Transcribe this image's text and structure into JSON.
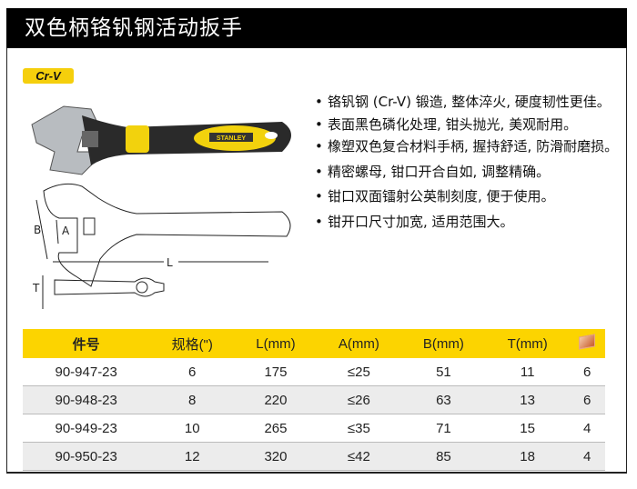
{
  "title": "双色柄铬钒钢活动扳手",
  "badge": "Cr-V",
  "brand_logo": "STANLEY",
  "diagram_labels": {
    "a": "A",
    "b": "B",
    "l": "L",
    "t": "T"
  },
  "features": [
    "铬钒钢 (Cr-V) 锻造, 整体淬火, 硬度韧性更佳。",
    "表面黑色磷化处理, 钳头抛光, 美观耐用。",
    "橡塑双色复合材料手柄, 握持舒适, 防滑耐磨损。",
    "精密螺母, 钳口开合自如, 调整精确。",
    "钳口双面镭射公英制刻度, 便于使用。",
    "钳开口尺寸加宽, 适用范围大。"
  ],
  "table": {
    "headers": [
      "件号",
      "规格(\")",
      "L(mm)",
      "A(mm)",
      "B(mm)",
      "T(mm)"
    ],
    "last_header_icon": "box-icon",
    "rows": [
      [
        "90-947-23",
        "6",
        "175",
        "≤25",
        "51",
        "11",
        "6"
      ],
      [
        "90-948-23",
        "8",
        "220",
        "≤26",
        "63",
        "13",
        "6"
      ],
      [
        "90-949-23",
        "10",
        "265",
        "≤35",
        "71",
        "15",
        "4"
      ],
      [
        "90-950-23",
        "12",
        "320",
        "≤42",
        "85",
        "18",
        "4"
      ]
    ]
  },
  "colors": {
    "accent": "#fcd400",
    "title_bg": "#000000"
  }
}
